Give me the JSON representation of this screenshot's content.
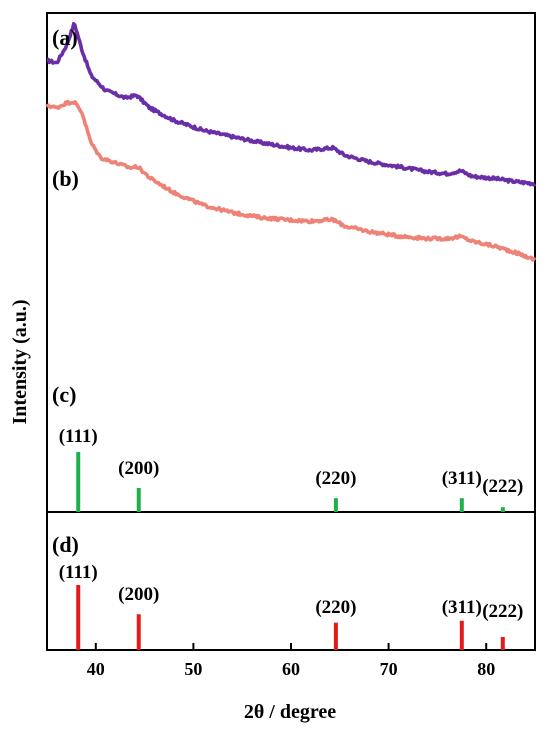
{
  "chart_data": {
    "type": "line",
    "xlabel": "2θ / degree",
    "ylabel": "Intensity (a.u.)",
    "xlim": [
      35,
      85
    ],
    "xticks": [
      40,
      50,
      60,
      70,
      80
    ],
    "xtick_labels": [
      "40",
      "50",
      "60",
      "70",
      "80"
    ],
    "grid": false,
    "series": [
      {
        "panel_label": "(a)",
        "color": "#6a2fa6",
        "x": [
          35,
          36,
          37,
          37.8,
          38.6,
          39.5,
          41,
          43,
          44.2,
          45.5,
          48,
          51,
          54,
          57,
          60,
          62,
          64.3,
          65.5,
          68,
          71,
          74,
          76,
          77.4,
          78.5,
          81,
          83,
          85
        ],
        "y": [
          0.905,
          0.9,
          0.935,
          0.98,
          0.925,
          0.875,
          0.845,
          0.83,
          0.835,
          0.81,
          0.785,
          0.765,
          0.752,
          0.74,
          0.73,
          0.725,
          0.73,
          0.715,
          0.702,
          0.692,
          0.682,
          0.678,
          0.684,
          0.673,
          0.668,
          0.662,
          0.658
        ]
      },
      {
        "panel_label": "(b)",
        "color": "#ee8277",
        "x": [
          35,
          36,
          37,
          37.8,
          38.6,
          39.5,
          40.5,
          42,
          43.5,
          44.3,
          45.5,
          48,
          51,
          54,
          57,
          60,
          62,
          64.3,
          65.5,
          68,
          71,
          74,
          76,
          77.4,
          78.5,
          81,
          83,
          85
        ],
        "y": [
          0.815,
          0.81,
          0.82,
          0.822,
          0.8,
          0.74,
          0.71,
          0.7,
          0.69,
          0.692,
          0.67,
          0.64,
          0.615,
          0.6,
          0.59,
          0.585,
          0.583,
          0.586,
          0.573,
          0.562,
          0.553,
          0.548,
          0.548,
          0.552,
          0.543,
          0.532,
          0.52,
          0.505
        ]
      }
    ],
    "reference_patterns": [
      {
        "panel_label": "(c)",
        "color": "#1fb04b",
        "peaks": [
          {
            "x": 38.2,
            "intensity": 1.0,
            "label": "(111)"
          },
          {
            "x": 44.4,
            "intensity": 0.4,
            "label": "(200)"
          },
          {
            "x": 64.6,
            "intensity": 0.23,
            "label": "(220)"
          },
          {
            "x": 77.5,
            "intensity": 0.23,
            "label": "(311)"
          },
          {
            "x": 81.7,
            "intensity": 0.08,
            "label": "(222)"
          }
        ]
      },
      {
        "panel_label": "(d)",
        "color": "#e41a1a",
        "peaks": [
          {
            "x": 38.2,
            "intensity": 1.0,
            "label": "(111)"
          },
          {
            "x": 44.4,
            "intensity": 0.55,
            "label": "(200)"
          },
          {
            "x": 64.6,
            "intensity": 0.42,
            "label": "(220)"
          },
          {
            "x": 77.5,
            "intensity": 0.45,
            "label": "(311)"
          },
          {
            "x": 81.7,
            "intensity": 0.2,
            "label": "(222)"
          }
        ]
      }
    ]
  }
}
